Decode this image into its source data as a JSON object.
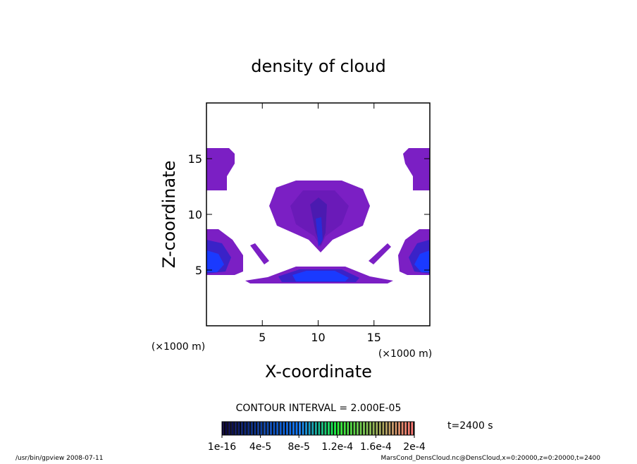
{
  "chart_data": {
    "type": "contour",
    "title": "density of cloud",
    "x_label": "X-coordinate",
    "y_label": "Z-coordinate",
    "x_unit": "(×1000 m)",
    "y_unit": "(×1000 m)",
    "xlim": [
      0,
      20
    ],
    "ylim": [
      0,
      20
    ],
    "xticks": [
      5,
      10,
      15
    ],
    "yticks": [
      5,
      10,
      15
    ],
    "contour_interval": "CONTOUR INTERVAL = 2.000E-05",
    "time_label": "t=2400 s",
    "colorbar_lim": [
      0,
      0.0002
    ],
    "colorbar_ticks": [
      {
        "value": 1e-16,
        "label": "1e-16"
      },
      {
        "value": 4e-05,
        "label": "4e-5"
      },
      {
        "value": 8e-05,
        "label": "8e-5"
      },
      {
        "value": 0.00012,
        "label": "1.2e-4"
      },
      {
        "value": 0.00016,
        "label": "1.6e-4"
      },
      {
        "value": 0.0002,
        "label": "2e-4"
      }
    ],
    "footer_left": "/usr/bin/gpview  2008-07-11",
    "footer_right": "MarsCond_DensCloud.nc@DensCloud,x=0:20000,z=0:20000,t=2400"
  }
}
